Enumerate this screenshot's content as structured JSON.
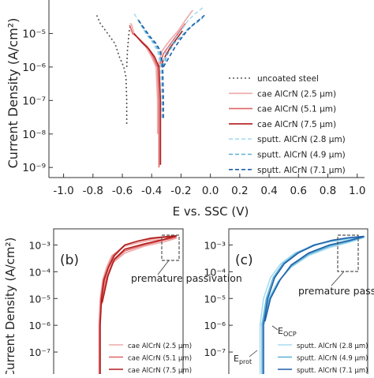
{
  "chart_data": [
    {
      "type": "line",
      "title": "",
      "xlabel": "E vs. SSC (V)",
      "ylabel": "Current Density (A/cm²)",
      "y_scale": "log",
      "x_ticks": [
        "-1.0",
        "-0.8",
        "-0.6",
        "-0.4",
        "-0.2",
        "0.0",
        "0.2",
        "0.4",
        "0.6",
        "0.8",
        "1.0"
      ],
      "x_tick_values": [
        -1.0,
        -0.8,
        -0.6,
        -0.4,
        -0.2,
        0.0,
        0.2,
        0.4,
        0.6,
        0.8,
        1.0
      ],
      "y_ticks": [
        "10⁻⁹",
        "10⁻⁸",
        "10⁻⁷",
        "10⁻⁶",
        "10⁻⁵"
      ],
      "y_tick_values": [
        1e-09,
        1e-08,
        1e-07,
        1e-06,
        1e-05
      ],
      "xlim": [
        -1.1,
        1.05
      ],
      "ylim": [
        5e-10,
        0.0001
      ],
      "legend_position": "right",
      "series": [
        {
          "name": "uncoated steel",
          "color": "#555555",
          "dash": "2,3",
          "x": [
            -0.57,
            -0.57,
            -0.575,
            -0.59,
            -0.62,
            -0.65,
            -0.7,
            -0.75,
            -0.78
          ],
          "y": [
            2e-08,
            1e-07,
            5e-07,
            1e-06,
            2e-06,
            5e-06,
            1e-05,
            2e-05,
            4e-05
          ],
          "x2": [
            -0.57,
            -0.565,
            -0.555,
            -0.545
          ],
          "y2": [
            1e-06,
            3e-06,
            1e-05,
            2e-05
          ]
        },
        {
          "name": "cae AlCrN (2.5 µm)",
          "color": "#f0a8a8",
          "dash": "",
          "x": [
            -0.36,
            -0.36,
            -0.37,
            -0.4,
            -0.44,
            -0.47,
            -0.5,
            -0.52,
            -0.54
          ],
          "y": [
            1e-08,
            1e-07,
            1e-06,
            2e-06,
            4e-06,
            6e-06,
            8e-06,
            1e-05,
            2e-05
          ],
          "x2": [
            -0.36,
            -0.33,
            -0.28,
            -0.22,
            -0.17,
            -0.12
          ],
          "y2": [
            1e-06,
            3e-06,
            6e-06,
            1.2e-05,
            2.5e-05,
            5e-05
          ]
        },
        {
          "name": "cae AlCrN (5.1 µm)",
          "color": "#e06565",
          "dash": "",
          "x": [
            -0.35,
            -0.35,
            -0.36,
            -0.39,
            -0.43,
            -0.47,
            -0.5,
            -0.53,
            -0.55
          ],
          "y": [
            1e-09,
            1e-07,
            1e-06,
            2e-06,
            4e-06,
            6e-06,
            8e-06,
            1e-05,
            1.8e-05
          ],
          "x2": [
            -0.35,
            -0.32,
            -0.27,
            -0.22,
            -0.17
          ],
          "y2": [
            1e-06,
            2.5e-06,
            5e-06,
            1e-05,
            2e-05
          ]
        },
        {
          "name": "cae AlCrN (7.5 µm)",
          "color": "#b01c1c",
          "dash": "",
          "x": [
            -0.34,
            -0.34,
            -0.35,
            -0.38,
            -0.42,
            -0.46,
            -0.49,
            -0.52
          ],
          "y": [
            1.2e-09,
            1e-07,
            1e-06,
            2e-06,
            3.5e-06,
            5e-06,
            7e-06,
            1e-05
          ],
          "x2": [
            -0.34,
            -0.31,
            -0.27,
            -0.23,
            -0.19
          ],
          "y2": [
            1e-06,
            2e-06,
            4e-06,
            7e-06,
            1.2e-05
          ]
        },
        {
          "name": "sputt. AlCrN (2.8 µm)",
          "color": "#a8dcef",
          "dash": "5,3",
          "x": [
            -0.33,
            -0.33,
            -0.34,
            -0.36,
            -0.4,
            -0.44,
            -0.48,
            -0.52
          ],
          "y": [
            3e-08,
            1e-07,
            1e-06,
            3e-06,
            6e-06,
            1e-05,
            2e-05,
            4e-05
          ],
          "x2": [
            -0.33,
            -0.3,
            -0.25,
            -0.2,
            -0.15,
            -0.1,
            -0.05
          ],
          "y2": [
            1e-06,
            3e-06,
            6e-06,
            1.2e-05,
            2.5e-05,
            4e-05,
            6e-05
          ]
        },
        {
          "name": "sputt. AlCrN (4.9 µm)",
          "color": "#5ab0d6",
          "dash": "5,3",
          "x": [
            -0.325,
            -0.325,
            -0.33,
            -0.35,
            -0.38,
            -0.42,
            -0.46,
            -0.5
          ],
          "y": [
            3e-08,
            1e-07,
            1e-06,
            3e-06,
            5e-06,
            8e-06,
            1.5e-05,
            3e-05
          ],
          "x2": [
            -0.325,
            -0.29,
            -0.25,
            -0.2,
            -0.15,
            -0.1,
            -0.05
          ],
          "y2": [
            1e-06,
            2.5e-06,
            5e-06,
            8e-06,
            1.4e-05,
            2e-05,
            3e-05
          ]
        },
        {
          "name": "sputt. AlCrN (7.1 µm)",
          "color": "#1f5ea8",
          "dash": "5,3",
          "x": [
            -0.32,
            -0.32,
            -0.325,
            -0.34,
            -0.37,
            -0.41,
            -0.45,
            -0.49
          ],
          "y": [
            3e-08,
            1e-07,
            1e-06,
            3e-06,
            5e-06,
            8e-06,
            1.4e-05,
            2.5e-05
          ],
          "x2": [
            -0.32,
            -0.28,
            -0.24,
            -0.2,
            -0.16,
            -0.12,
            -0.08,
            -0.04
          ],
          "y2": [
            1e-06,
            2e-06,
            4e-06,
            7e-06,
            1.2e-05,
            1.8e-05,
            2.5e-05,
            3.5e-05
          ]
        }
      ]
    },
    {
      "type": "line",
      "panel_label": "(b)",
      "ylabel": "Current Density (A/cm²)",
      "y_scale": "log",
      "y_ticks": [
        "10⁻³",
        "10⁻⁴",
        "10⁻⁵",
        "10⁻⁶",
        "10⁻⁷"
      ],
      "y_tick_values": [
        0.001,
        0.0001,
        1e-05,
        1e-06,
        1e-07
      ],
      "ylim": [
        1e-08,
        0.004
      ],
      "xlim": [
        -1.0,
        1.0
      ],
      "annotation": "premature passivation",
      "legend_position": "bottom-right",
      "series": [
        {
          "name": "cae AlCrN (2.5 µm)",
          "color": "#f0a8a8",
          "x": [
            -0.3,
            -0.3,
            -0.28,
            -0.24,
            -0.18,
            -0.1,
            0.1,
            0.3,
            0.5,
            0.7,
            0.9,
            0.7,
            0.4,
            0.1,
            -0.1,
            -0.2,
            -0.27
          ],
          "y": [
            1e-08,
            1e-06,
            1e-05,
            5e-05,
            0.00015,
            0.0004,
            0.0009,
            0.0012,
            0.0015,
            0.0016,
            0.0018,
            0.0013,
            0.0009,
            0.0005,
            0.0002,
            5e-05,
            5e-06
          ]
        },
        {
          "name": "cae AlCrN (5.1 µm)",
          "color": "#e06565",
          "x": [
            -0.29,
            -0.29,
            -0.27,
            -0.23,
            -0.16,
            -0.08,
            0.1,
            0.3,
            0.5,
            0.7,
            0.9,
            0.7,
            0.4,
            0.1,
            -0.08,
            -0.18,
            -0.26
          ],
          "y": [
            1e-08,
            1e-06,
            1e-05,
            5e-05,
            0.00015,
            0.0004,
            0.001,
            0.0014,
            0.0017,
            0.0019,
            0.002,
            0.0015,
            0.001,
            0.0006,
            0.00025,
            6e-05,
            6e-06
          ]
        },
        {
          "name": "cae AlCrN (7.5 µm)",
          "color": "#b01c1c",
          "x": [
            -0.28,
            -0.28,
            -0.26,
            -0.22,
            -0.15,
            -0.06,
            0.1,
            0.3,
            0.5,
            0.7,
            0.9,
            0.7,
            0.4,
            0.1,
            -0.06,
            -0.16,
            -0.25
          ],
          "y": [
            1e-08,
            1e-06,
            1e-05,
            5e-05,
            0.00015,
            0.0004,
            0.001,
            0.0014,
            0.0018,
            0.002,
            0.0022,
            0.0016,
            0.0011,
            0.0007,
            0.0003,
            7e-05,
            7e-06
          ]
        }
      ]
    },
    {
      "type": "line",
      "panel_label": "(c)",
      "y_scale": "log",
      "y_ticks": [
        "10⁻³",
        "10⁻⁴",
        "10⁻⁵",
        "10⁻⁶",
        "10⁻⁷"
      ],
      "y_tick_values": [
        0.001,
        0.0001,
        1e-05,
        1e-06,
        1e-07
      ],
      "ylim": [
        1e-08,
        0.004
      ],
      "xlim": [
        -1.0,
        1.0
      ],
      "annotation": "premature passivation",
      "annotation_ocp": "E",
      "annotation_ocp_sub": "OCP",
      "annotation_prot": "E",
      "annotation_prot_sub": "prot",
      "legend_position": "bottom-right",
      "series": [
        {
          "name": "sputt. AlCrN (2.8 µm)",
          "color": "#a8dcef",
          "x": [
            -0.55,
            -0.55,
            -0.5,
            -0.4,
            -0.25,
            -0.05,
            0.2,
            0.45,
            0.7,
            0.95,
            0.75,
            0.45,
            0.15,
            -0.1,
            -0.3,
            -0.45,
            -0.53
          ],
          "y": [
            1e-08,
            1e-06,
            1e-05,
            6e-05,
            0.0002,
            0.0005,
            0.0009,
            0.0013,
            0.0016,
            0.0019,
            0.0013,
            0.0008,
            0.0004,
            0.00015,
            4e-05,
            8e-06,
            1e-06
          ]
        },
        {
          "name": "sputt. AlCrN (4.9 µm)",
          "color": "#5ab0d6",
          "x": [
            -0.52,
            -0.52,
            -0.46,
            -0.36,
            -0.22,
            -0.02,
            0.22,
            0.47,
            0.72,
            0.95,
            0.75,
            0.45,
            0.15,
            -0.1,
            -0.28,
            -0.42,
            -0.5
          ],
          "y": [
            1e-08,
            1e-06,
            1e-05,
            6e-05,
            0.0002,
            0.0005,
            0.001,
            0.0014,
            0.0018,
            0.002,
            0.0014,
            0.0009,
            0.00045,
            0.00016,
            4.5e-05,
            9e-06,
            1.2e-06
          ]
        },
        {
          "name": "sputt. AlCrN (7.1 µm)",
          "color": "#1f5ea8",
          "x": [
            -0.5,
            -0.5,
            -0.44,
            -0.34,
            -0.2,
            0.0,
            0.24,
            0.49,
            0.74,
            0.95,
            0.75,
            0.45,
            0.15,
            -0.1,
            -0.26,
            -0.4,
            -0.48
          ],
          "y": [
            1e-08,
            1e-06,
            1e-05,
            6e-05,
            0.0002,
            0.0005,
            0.001,
            0.0015,
            0.0019,
            0.0021,
            0.0015,
            0.001,
            0.0005,
            0.00018,
            5e-05,
            1e-05,
            1.4e-06
          ]
        }
      ]
    }
  ]
}
